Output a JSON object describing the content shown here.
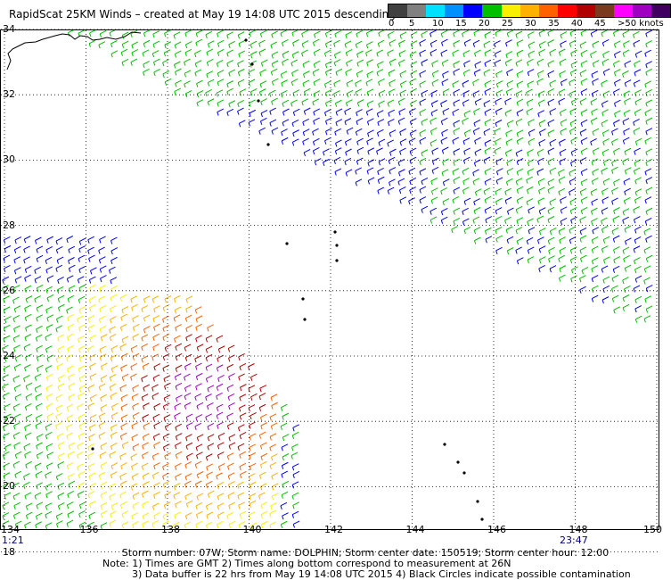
{
  "title": "RapidScat 25KM Winds – created at May 19 14:08 UTC 2015 descending",
  "scale": {
    "labels": [
      "0",
      "5",
      "10",
      "15",
      "20",
      "25",
      "30",
      "35",
      "40",
      "45",
      ">50 knots"
    ],
    "colors": [
      "#404040",
      "#808080",
      "#00e0ff",
      "#0090ff",
      "#0000ff",
      "#00c000",
      "#f8f000",
      "#ffb000",
      "#ff6000",
      "#ff0000",
      "#b00000",
      "#7a3a20",
      "#ff00ff",
      "#a000c0",
      "#400060"
    ]
  },
  "axes": {
    "lon_labels": [
      "134",
      "136",
      "138",
      "140",
      "142",
      "144",
      "146",
      "148",
      "150"
    ],
    "lat_labels": [
      "34",
      "32",
      "30",
      "28",
      "26",
      "24",
      "22",
      "20",
      "18"
    ]
  },
  "times": {
    "left": "1:21",
    "right": "23:47"
  },
  "footer": {
    "line1": "Storm number: 07W;  Storm name: DOLPHIN;  Storm center date: 150519;  Storm center hour: 12:00",
    "line2": "Note: 1) Times are GMT  2) Times along bottom correspond to measurement at 26N",
    "line3": "3) Data buffer is 22 hrs from May 19 14:08 UTC 2015   4) Black Circles indicate possible contamination"
  }
}
